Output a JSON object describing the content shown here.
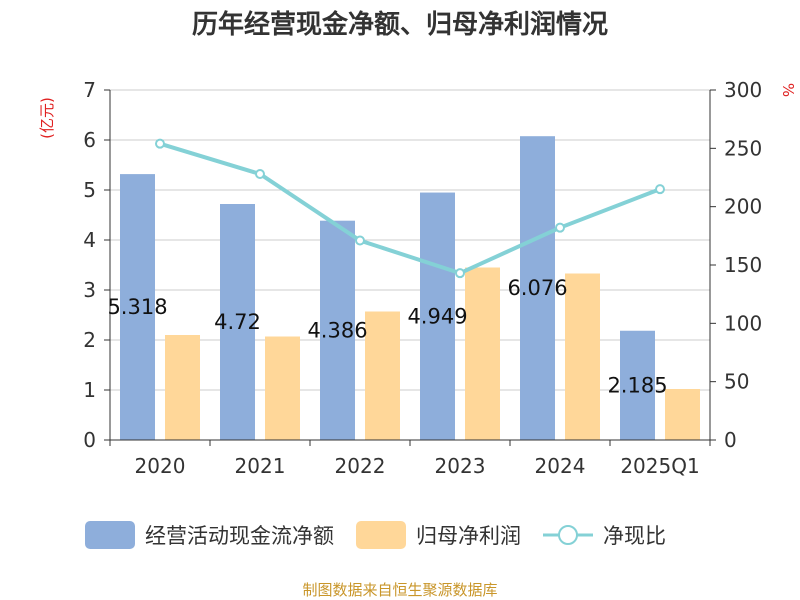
{
  "chart_data": {
    "type": "bar",
    "title": "历年经营现金净额、归母净利润情况",
    "categories": [
      "2020",
      "2021",
      "2022",
      "2023",
      "2024",
      "2025Q1"
    ],
    "series": [
      {
        "name": "经营活动现金流净额",
        "type": "bar",
        "axis": "left",
        "color": "#8eaedb",
        "values": [
          5.318,
          4.72,
          4.386,
          4.949,
          6.076,
          2.185
        ]
      },
      {
        "name": "归母净利润",
        "type": "bar",
        "axis": "left",
        "color": "#ffd799",
        "values": [
          2.1,
          2.07,
          2.57,
          3.45,
          3.33,
          1.02
        ]
      },
      {
        "name": "净现比",
        "type": "line",
        "axis": "right",
        "color": "#84d1d6",
        "values": [
          254,
          228,
          171,
          143,
          182,
          215
        ]
      }
    ],
    "data_labels": [
      "5.318",
      "4.72",
      "4.386",
      "4.949",
      "6.076",
      "2.185"
    ],
    "y_left": {
      "unit": "(亿元)",
      "ylim": [
        0,
        7
      ],
      "ticks": [
        "0",
        "1",
        "2",
        "3",
        "4",
        "5",
        "6",
        "7"
      ]
    },
    "y_right": {
      "unit": "%",
      "ylim": [
        0,
        300
      ],
      "ticks": [
        "0",
        "50",
        "100",
        "150",
        "200",
        "250",
        "300"
      ]
    },
    "grid": true,
    "legend_position": "bottom"
  },
  "source_note": "制图数据来自恒生聚源数据库"
}
